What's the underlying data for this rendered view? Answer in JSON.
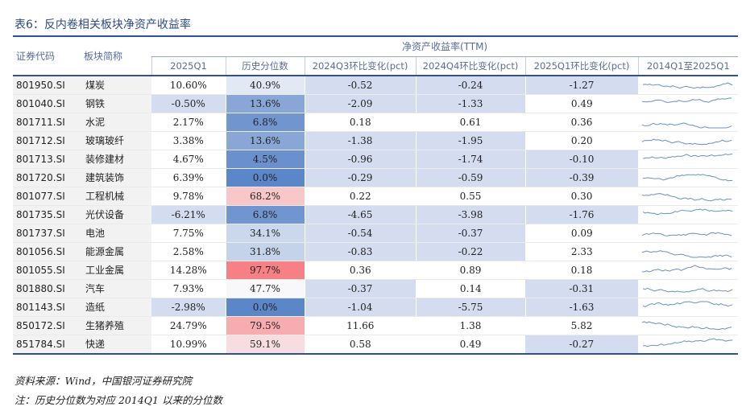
{
  "title": "表6：反内卷相关板块净资产收益率",
  "headers": {
    "code": "证券代码",
    "name": "板块简称",
    "group": "净资产收益率(TTM)",
    "cols": [
      "2025Q1",
      "历史分位数",
      "2024Q3环比变化(pct)",
      "2024Q4环比变化(pct)",
      "2025Q1环比变化(pct)",
      "2014Q1至2025Q1"
    ]
  },
  "colors": {
    "accent": "#2f4f9a",
    "shade_q1": "#d4dcf0",
    "pct_low": "#5b86c8",
    "pct_mid": "#f8f8fb",
    "pct_high": "#f77b7f",
    "neg_shade": "#d4dcf0",
    "stripe": "#f2f2f2",
    "sparkline": "#6a8fc8"
  },
  "rows": [
    {
      "code": "801950.SI",
      "name": "煤炭",
      "q1": "10.60%",
      "pct": "40.9%",
      "pct_value": 40.9,
      "c3": "-0.52",
      "c4": "-0.24",
      "c1": "-1.27"
    },
    {
      "code": "801040.SI",
      "name": "钢铁",
      "q1": "-0.50%",
      "pct": "13.6%",
      "pct_value": 13.6,
      "c3": "-2.09",
      "c4": "-1.33",
      "c1": "0.49"
    },
    {
      "code": "801711.SI",
      "name": "水泥",
      "q1": "2.17%",
      "pct": "6.8%",
      "pct_value": 6.8,
      "c3": "0.18",
      "c4": "0.61",
      "c1": "0.36"
    },
    {
      "code": "801712.SI",
      "name": "玻璃玻纤",
      "q1": "3.38%",
      "pct": "13.6%",
      "pct_value": 13.6,
      "c3": "-1.38",
      "c4": "-1.95",
      "c1": "0.20"
    },
    {
      "code": "801713.SI",
      "name": "装修建材",
      "q1": "4.67%",
      "pct": "4.5%",
      "pct_value": 4.5,
      "c3": "-0.96",
      "c4": "-1.74",
      "c1": "-0.10"
    },
    {
      "code": "801720.SI",
      "name": "建筑装饰",
      "q1": "6.39%",
      "pct": "0.0%",
      "pct_value": 0.0,
      "c3": "-0.29",
      "c4": "-0.59",
      "c1": "-0.39"
    },
    {
      "code": "801077.SI",
      "name": "工程机械",
      "q1": "9.78%",
      "pct": "68.2%",
      "pct_value": 68.2,
      "c3": "0.22",
      "c4": "0.55",
      "c1": "0.30"
    },
    {
      "code": "801735.SI",
      "name": "光伏设备",
      "q1": "-6.21%",
      "pct": "6.8%",
      "pct_value": 6.8,
      "c3": "-4.65",
      "c4": "-3.98",
      "c1": "-1.76"
    },
    {
      "code": "801737.SI",
      "name": "电池",
      "q1": "7.75%",
      "pct": "34.1%",
      "pct_value": 34.1,
      "c3": "-0.54",
      "c4": "-0.37",
      "c1": "0.09"
    },
    {
      "code": "801056.SI",
      "name": "能源金属",
      "q1": "2.58%",
      "pct": "31.8%",
      "pct_value": 31.8,
      "c3": "-0.83",
      "c4": "-0.22",
      "c1": "2.33"
    },
    {
      "code": "801055.SI",
      "name": "工业金属",
      "q1": "14.28%",
      "pct": "97.7%",
      "pct_value": 97.7,
      "c3": "0.36",
      "c4": "0.89",
      "c1": "0.18"
    },
    {
      "code": "801880.SI",
      "name": "汽车",
      "q1": "7.93%",
      "pct": "47.7%",
      "pct_value": 47.7,
      "c3": "-0.37",
      "c4": "0.14",
      "c1": "-0.31"
    },
    {
      "code": "801143.SI",
      "name": "造纸",
      "q1": "-2.98%",
      "pct": "0.0%",
      "pct_value": 0.0,
      "c3": "-1.04",
      "c4": "-5.75",
      "c1": "-1.63"
    },
    {
      "code": "850172.SI",
      "name": "生猪养殖",
      "q1": "24.79%",
      "pct": "79.5%",
      "pct_value": 79.5,
      "c3": "11.66",
      "c4": "1.38",
      "c1": "5.82"
    },
    {
      "code": "851784.SI",
      "name": "快递",
      "q1": "10.99%",
      "pct": "59.1%",
      "pct_value": 59.1,
      "c3": "0.58",
      "c4": "0.49",
      "c1": "-0.27"
    }
  ],
  "notes": [
    "资料来源：Wind，中国银河证券研究院",
    "注：历史分位数为对应 2014Q1 以来的分位数"
  ]
}
